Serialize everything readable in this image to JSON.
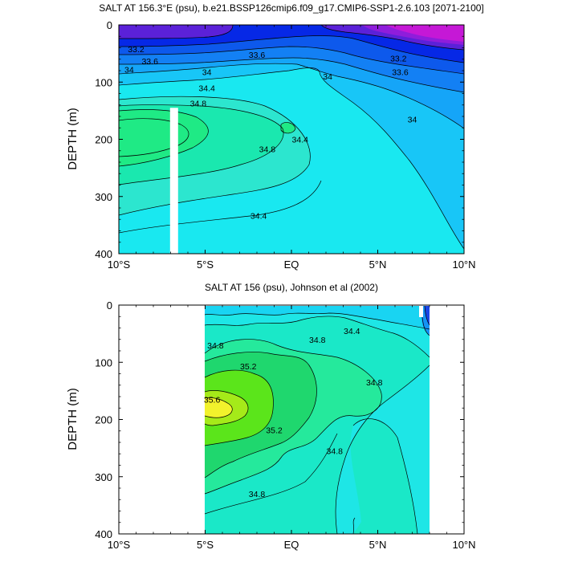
{
  "chart_data": [
    {
      "type": "contour",
      "title": "SALT AT 156.3°E (psu), b.e21.BSSP126cmip6.f09_g17.CMIP6-SSP1-2.6.103 [2071-2100]",
      "ylabel": "DEPTH (m)",
      "xlabel": "",
      "x_ticks": [
        "10°S",
        "5°S",
        "EQ",
        "5°N",
        "10°N"
      ],
      "x_tick_values": [
        -10,
        -5,
        0,
        5,
        10
      ],
      "y_ticks": [
        "0",
        "100",
        "200",
        "300",
        "400"
      ],
      "y_tick_values": [
        0,
        100,
        200,
        300,
        400
      ],
      "xlim": [
        -10,
        10
      ],
      "ylim": [
        400,
        0
      ],
      "y_reversed": true,
      "contour_labels": [
        {
          "text": "33.2",
          "lat": -9.0,
          "depth": 42
        },
        {
          "text": "33.6",
          "lat": -8.2,
          "depth": 63
        },
        {
          "text": "34",
          "lat": -9.4,
          "depth": 78
        },
        {
          "text": "33.6",
          "lat": -2.0,
          "depth": 52
        },
        {
          "text": "33.2",
          "lat": 6.2,
          "depth": 58
        },
        {
          "text": "33.6",
          "lat": 6.3,
          "depth": 82
        },
        {
          "text": "34",
          "lat": -4.9,
          "depth": 82
        },
        {
          "text": "34",
          "lat": 2.1,
          "depth": 90
        },
        {
          "text": "34.4",
          "lat": -4.9,
          "depth": 110
        },
        {
          "text": "34.8",
          "lat": -5.4,
          "depth": 137
        },
        {
          "text": "34.4",
          "lat": 0.5,
          "depth": 200
        },
        {
          "text": "34.8",
          "lat": -1.4,
          "depth": 217
        },
        {
          "text": "34",
          "lat": 7.0,
          "depth": 165
        },
        {
          "text": "34.4",
          "lat": -1.9,
          "depth": 333
        }
      ],
      "white_bar": {
        "lat": -6.8,
        "depth_top": 145,
        "depth_bottom": 400
      }
    },
    {
      "type": "contour",
      "title": "SALT AT 156 (psu), Johnson et al (2002)",
      "ylabel": "DEPTH (m)",
      "xlabel": "",
      "x_ticks": [
        "10°S",
        "5°S",
        "EQ",
        "5°N",
        "10°N"
      ],
      "x_tick_values": [
        -10,
        -5,
        0,
        5,
        10
      ],
      "y_ticks": [
        "0",
        "100",
        "200",
        "300",
        "400"
      ],
      "y_tick_values": [
        0,
        100,
        200,
        300,
        400
      ],
      "xlim": [
        -10,
        10
      ],
      "ylim": [
        400,
        0
      ],
      "y_reversed": true,
      "data_extent": {
        "lat": [
          -5,
          8
        ],
        "depth": [
          5,
          400
        ]
      },
      "contour_labels": [
        {
          "text": "34.8",
          "lat": -4.4,
          "depth": 70
        },
        {
          "text": "34.8",
          "lat": 1.5,
          "depth": 60
        },
        {
          "text": "34.4",
          "lat": 3.5,
          "depth": 45
        },
        {
          "text": "35.2",
          "lat": -2.5,
          "depth": 107
        },
        {
          "text": "34.8",
          "lat": 4.8,
          "depth": 135
        },
        {
          "text": "35.6",
          "lat": -4.6,
          "depth": 165
        },
        {
          "text": "35.2",
          "lat": -1.0,
          "depth": 218
        },
        {
          "text": "34.8",
          "lat": 2.5,
          "depth": 255
        },
        {
          "text": "34.8",
          "lat": -2.0,
          "depth": 330
        }
      ]
    }
  ]
}
